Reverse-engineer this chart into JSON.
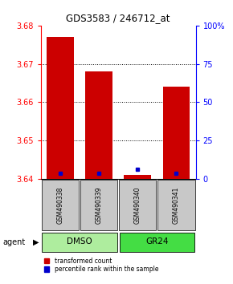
{
  "title": "GDS3583 / 246712_at",
  "samples": [
    "GSM490338",
    "GSM490339",
    "GSM490340",
    "GSM490341"
  ],
  "red_values": [
    3.677,
    3.668,
    3.641,
    3.664
  ],
  "blue_values": [
    3.6415,
    3.6415,
    3.6425,
    3.6415
  ],
  "base_value": 3.64,
  "ylim": [
    3.64,
    3.68
  ],
  "right_ylim": [
    0,
    100
  ],
  "right_yticks": [
    0,
    25,
    50,
    75,
    100
  ],
  "right_yticklabels": [
    "0",
    "25",
    "50",
    "75",
    "100%"
  ],
  "left_yticks": [
    3.64,
    3.65,
    3.66,
    3.67,
    3.68
  ],
  "groups": [
    {
      "label": "DMSO",
      "indices": [
        0,
        1
      ],
      "color": "#aeed9e"
    },
    {
      "label": "GR24",
      "indices": [
        2,
        3
      ],
      "color": "#44dd44"
    }
  ],
  "bar_color": "#cc0000",
  "blue_color": "#0000cc",
  "sample_box_color": "#c8c8c8",
  "agent_label": "agent",
  "legend_red_label": "transformed count",
  "legend_blue_label": "percentile rank within the sample",
  "bar_width": 0.7
}
